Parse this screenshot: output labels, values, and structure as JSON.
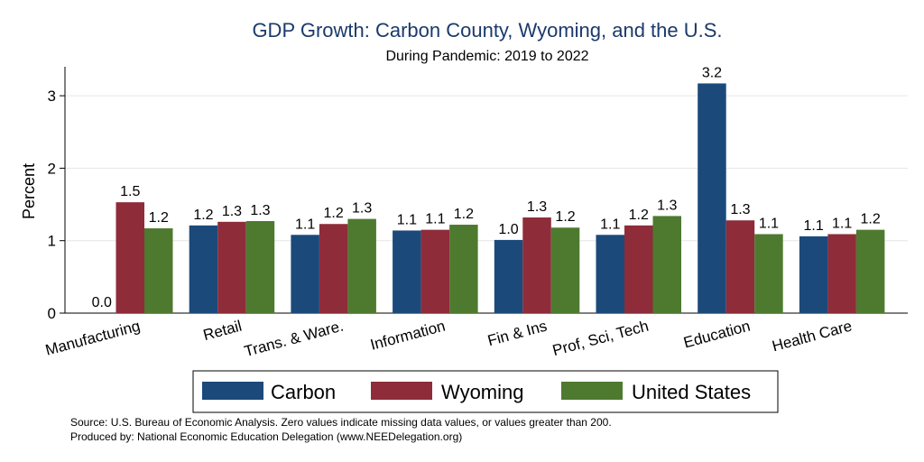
{
  "chart_data": {
    "type": "bar",
    "title": "GDP Growth: Carbon County, Wyoming, and the U.S.",
    "subtitle": "During Pandemic: 2019 to 2022",
    "ylabel": "Percent",
    "xlabel": "",
    "ylim": [
      0,
      3.3
    ],
    "yticks": [
      0,
      1,
      2,
      3
    ],
    "grid": true,
    "legend_position": "bottom",
    "categories": [
      "Manufacturing",
      "Retail",
      "Trans. & Ware.",
      "Information",
      "Fin & Ins",
      "Prof, Sci, Tech",
      "Education",
      "Health Care"
    ],
    "series": [
      {
        "name": "Carbon",
        "color": "#1b4a7a",
        "values": [
          0.0,
          1.21,
          1.08,
          1.14,
          1.01,
          1.08,
          3.17,
          1.06
        ],
        "labels": [
          "0.0",
          "1.2",
          "1.1",
          "1.1",
          "1.0",
          "1.1",
          "3.2",
          "1.1"
        ]
      },
      {
        "name": "Wyoming",
        "color": "#8e2c3a",
        "values": [
          1.53,
          1.26,
          1.23,
          1.15,
          1.32,
          1.21,
          1.28,
          1.09
        ],
        "labels": [
          "1.5",
          "1.3",
          "1.2",
          "1.1",
          "1.3",
          "1.2",
          "1.3",
          "1.1"
        ]
      },
      {
        "name": "United States",
        "color": "#4e7a2f",
        "values": [
          1.17,
          1.27,
          1.3,
          1.22,
          1.18,
          1.34,
          1.09,
          1.15
        ],
        "labels": [
          "1.2",
          "1.3",
          "1.3",
          "1.2",
          "1.2",
          "1.3",
          "1.1",
          "1.2"
        ]
      }
    ],
    "notes": [
      "Source: U.S. Bureau of Economic Analysis. Zero values indicate missing data values, or values greater than 200.",
      "Produced by: National Economic Education Delegation (www.NEEDelegation.org)"
    ]
  }
}
